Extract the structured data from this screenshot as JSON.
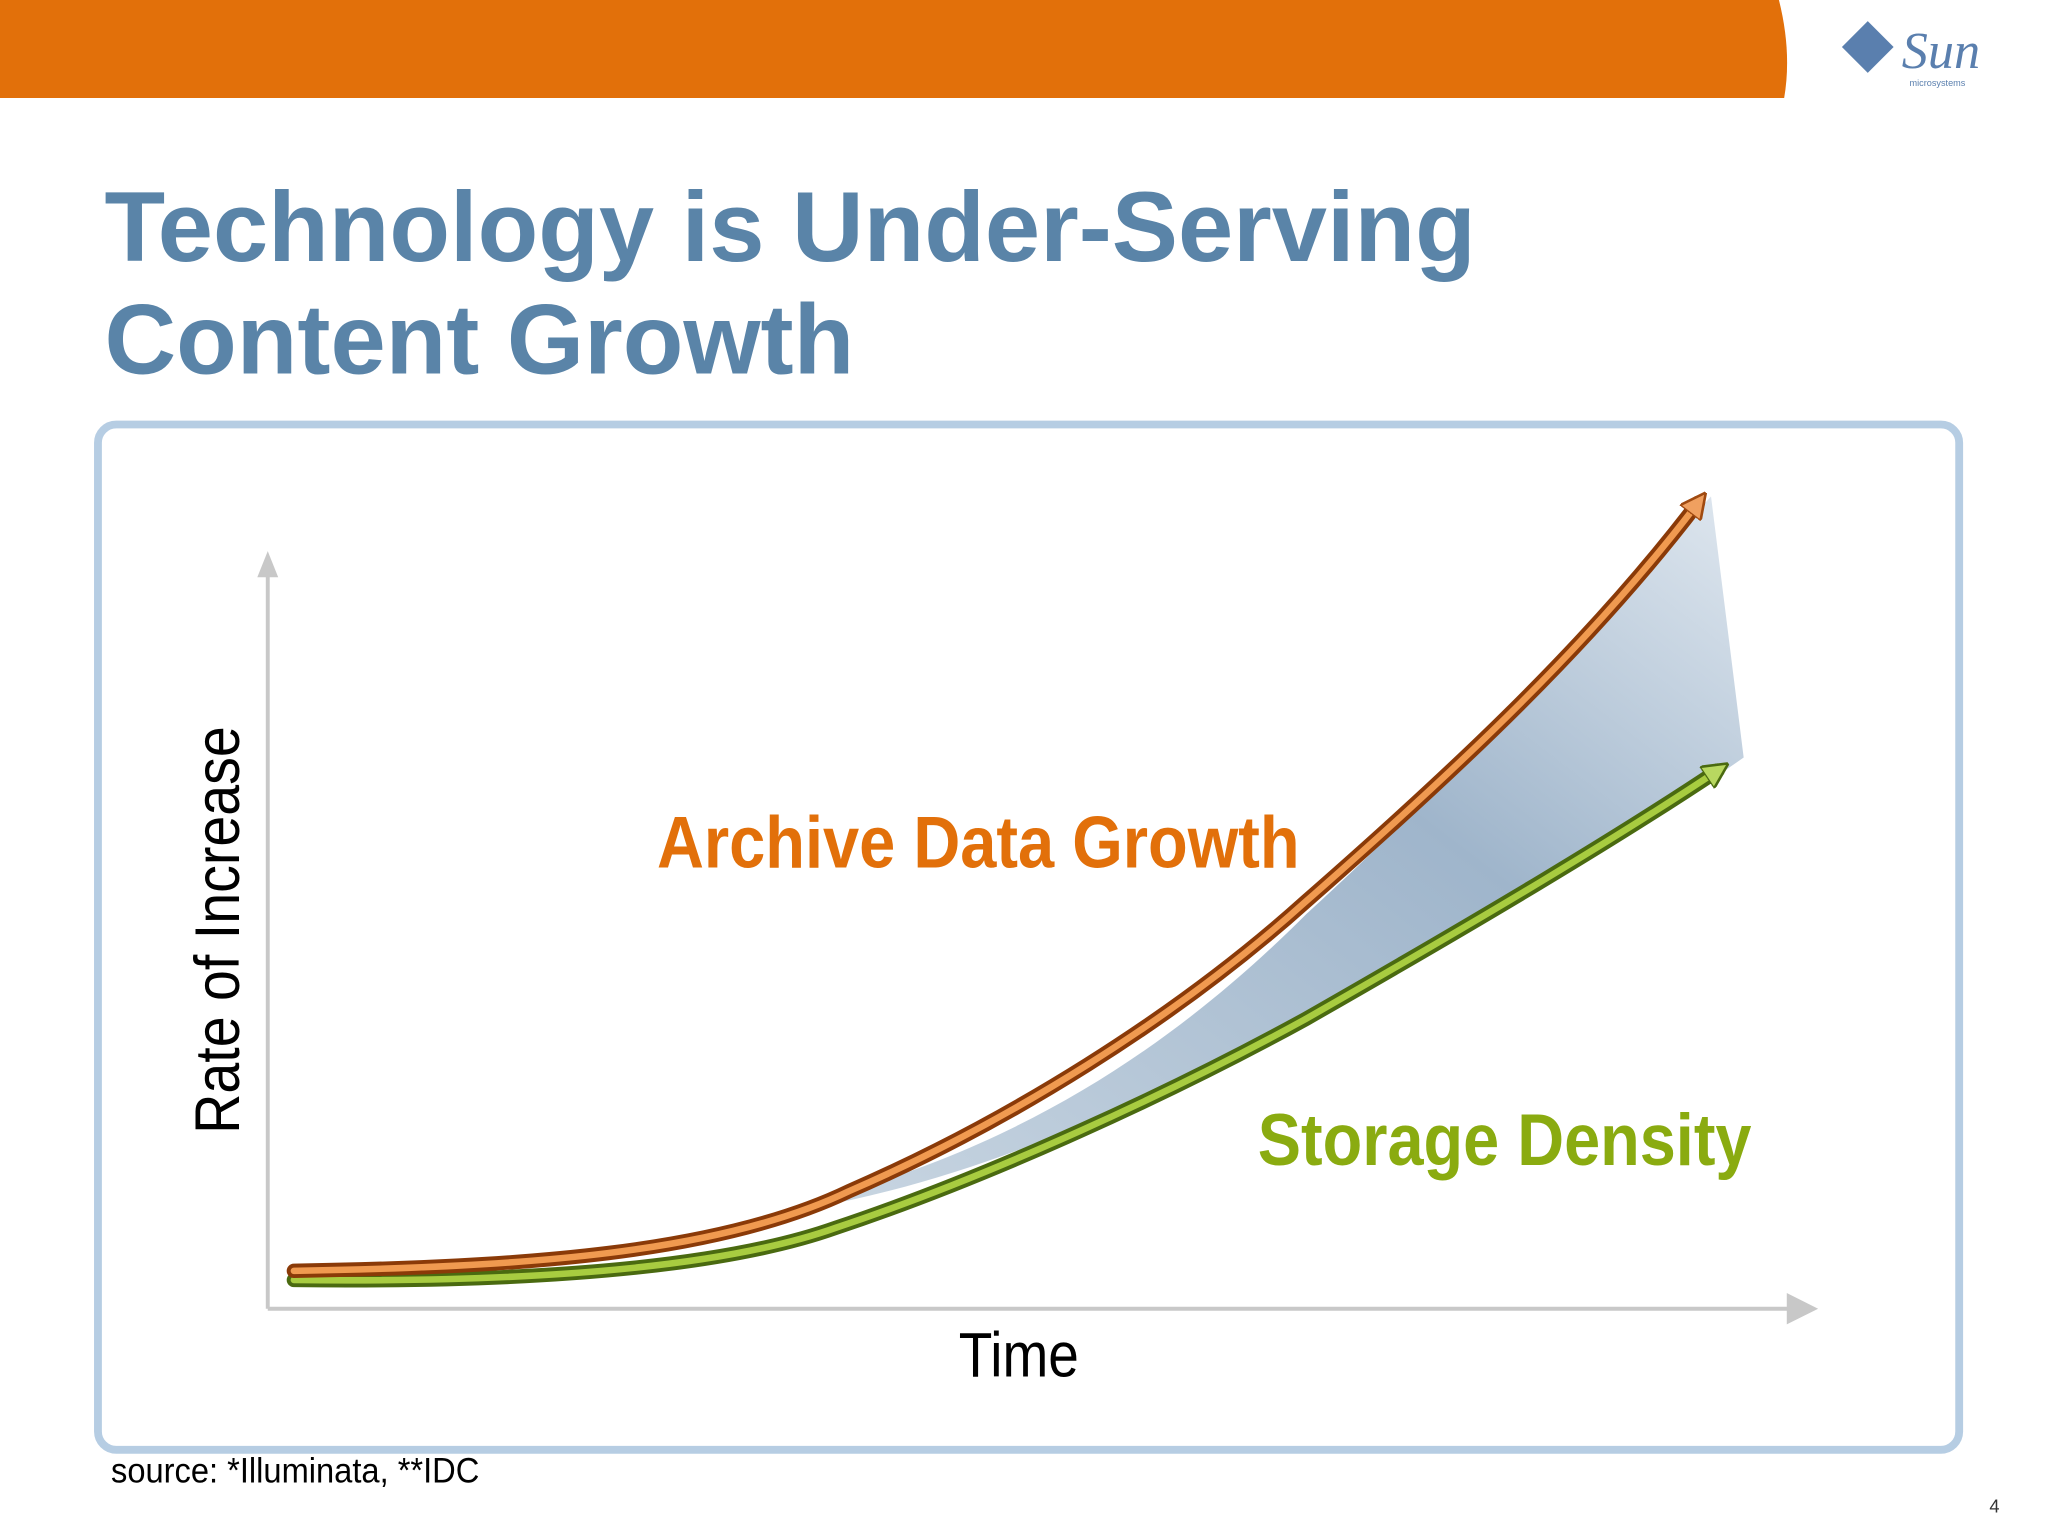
{
  "header": {
    "logo": "Sun",
    "logo_subtitle": "microsystems"
  },
  "title": {
    "line1": "Technology is Under-Serving",
    "line2": "Content Growth"
  },
  "diagram": {
    "y_axis_label": "Rate of Increase",
    "x_axis_label": "Time",
    "curves": [
      {
        "label": "Archive Data Growth"
      },
      {
        "label": "Storage Density"
      }
    ]
  },
  "footer": {
    "source": "source: *Illuminata, **IDC",
    "page_number": "4"
  }
}
